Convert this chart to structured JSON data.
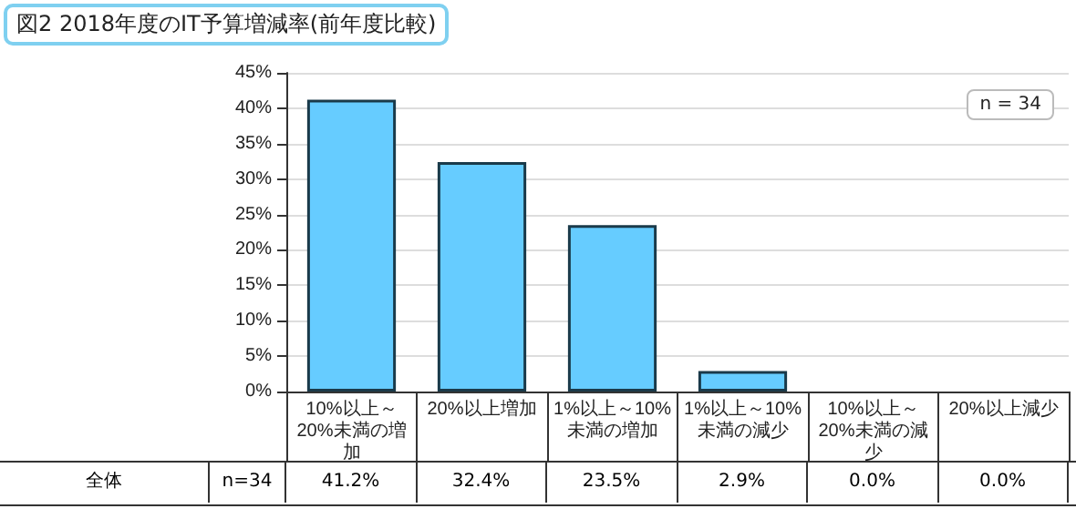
{
  "chart_data": {
    "type": "bar",
    "title": "図2 2018年度のIT予算増減率(前年度比較)",
    "categories": [
      "10%以上～20%未満の増加",
      "20%以上増加",
      "1%以上～10%未満の増加",
      "1%以上～10%未満の減少",
      "10%以上～20%未満の減少",
      "20%以上減少"
    ],
    "series": [
      {
        "color": "#66ccff",
        "values": [
          41.2,
          32.4,
          23.5,
          2.9,
          0.0,
          0.0
        ],
        "value_labels": [
          "41.2%",
          "32.4%",
          "23.5%",
          "2.9%",
          "0.0%",
          "0.0%"
        ]
      }
    ],
    "ylim": [
      0,
      45
    ],
    "yticks": [
      {
        "value": 0,
        "label": "0%"
      },
      {
        "value": 5,
        "label": "5%"
      },
      {
        "value": 10,
        "label": "10%"
      },
      {
        "value": 15,
        "label": "15%"
      },
      {
        "value": 20,
        "label": "20%"
      },
      {
        "value": 25,
        "label": "25%"
      },
      {
        "value": 30,
        "label": "30%"
      },
      {
        "value": 35,
        "label": "35%"
      },
      {
        "value": 40,
        "label": "40%"
      },
      {
        "value": 45,
        "label": "45%"
      }
    ],
    "grid": "y",
    "annotations": [
      "n = 34",
      "全体",
      "n=34"
    ]
  }
}
